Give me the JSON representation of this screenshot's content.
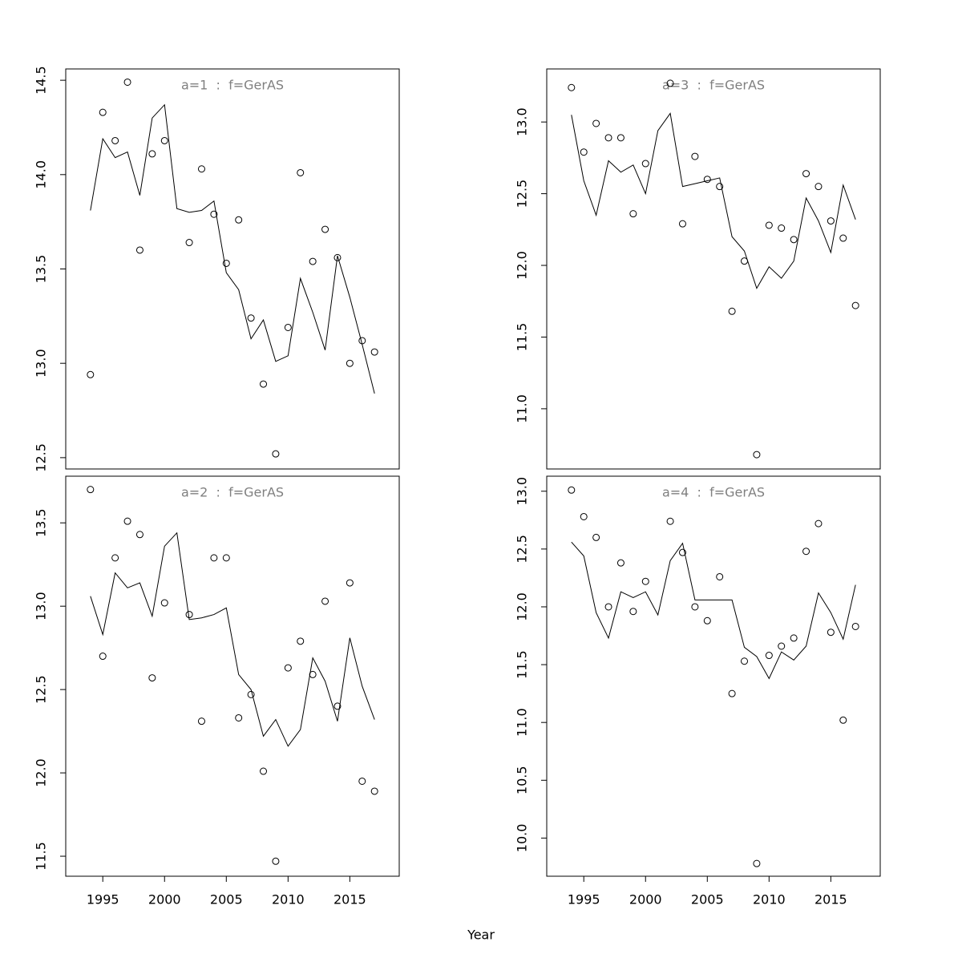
{
  "xlabel": "Year",
  "chart_data": [
    {
      "type": "scatter-line",
      "title": "a=1  :  f=GerAS",
      "x": [
        1994,
        1995,
        1996,
        1997,
        1998,
        1999,
        2000,
        2001,
        2002,
        2003,
        2004,
        2005,
        2006,
        2007,
        2008,
        2009,
        2010,
        2011,
        2012,
        2013,
        2014,
        2015,
        2016,
        2017
      ],
      "series": [
        {
          "style": "points",
          "color": "#000000",
          "values": [
            12.94,
            14.33,
            14.18,
            14.49,
            13.6,
            14.11,
            14.18,
            null,
            13.64,
            14.03,
            13.79,
            13.53,
            13.76,
            13.24,
            12.89,
            12.52,
            13.19,
            14.01,
            13.54,
            13.71,
            13.56,
            13.0,
            13.12,
            13.06
          ]
        },
        {
          "style": "line",
          "color": "#000000",
          "values": [
            13.81,
            14.19,
            14.09,
            14.12,
            13.89,
            14.3,
            14.37,
            13.82,
            13.8,
            13.81,
            13.86,
            13.48,
            13.39,
            13.13,
            13.23,
            13.01,
            13.04,
            13.45,
            13.27,
            13.07,
            13.57,
            13.35,
            13.1,
            12.84
          ]
        }
      ],
      "xlim": [
        1992,
        2019
      ],
      "ylim": [
        12.44,
        14.56
      ],
      "yticks": [
        {
          "value": 12.5,
          "label": "12.5"
        },
        {
          "value": 13,
          "label": "13.0"
        },
        {
          "value": 13.5,
          "label": "13.5"
        },
        {
          "value": 14,
          "label": "14.0"
        },
        {
          "value": 14.5,
          "label": "14.5"
        }
      ]
    },
    {
      "type": "scatter-line",
      "title": "a=2  :  f=GerAS",
      "x": [
        1994,
        1995,
        1996,
        1997,
        1998,
        1999,
        2000,
        2001,
        2002,
        2003,
        2004,
        2005,
        2006,
        2007,
        2008,
        2009,
        2010,
        2011,
        2012,
        2013,
        2014,
        2015,
        2016,
        2017
      ],
      "series": [
        {
          "style": "points",
          "color": "#000000",
          "values": [
            13.7,
            12.7,
            13.29,
            13.51,
            13.43,
            12.57,
            13.02,
            null,
            12.95,
            12.31,
            13.29,
            13.29,
            12.33,
            12.47,
            12.01,
            11.47,
            12.63,
            12.79,
            12.59,
            13.03,
            12.4,
            13.14,
            11.95,
            11.89
          ]
        },
        {
          "style": "line",
          "color": "#000000",
          "values": [
            13.06,
            12.83,
            13.2,
            13.11,
            13.14,
            12.94,
            13.36,
            13.44,
            12.92,
            12.93,
            12.95,
            12.99,
            12.59,
            12.5,
            12.22,
            12.32,
            12.16,
            12.26,
            12.69,
            12.55,
            12.31,
            12.81,
            12.52,
            12.32
          ]
        }
      ],
      "xlim": [
        1992,
        2019
      ],
      "ylim": [
        11.38,
        13.78
      ],
      "xticks": [
        1995,
        2000,
        2005,
        2010,
        2015
      ],
      "yticks": [
        {
          "value": 11.5,
          "label": "11.5"
        },
        {
          "value": 12,
          "label": "12.0"
        },
        {
          "value": 12.5,
          "label": "12.5"
        },
        {
          "value": 13,
          "label": "13.0"
        },
        {
          "value": 13.5,
          "label": "13.5"
        }
      ]
    },
    {
      "type": "scatter-line",
      "title": "a=3  :  f=GerAS",
      "x": [
        1994,
        1995,
        1996,
        1997,
        1998,
        1999,
        2000,
        2001,
        2002,
        2003,
        2004,
        2005,
        2006,
        2007,
        2008,
        2009,
        2010,
        2011,
        2012,
        2013,
        2014,
        2015,
        2016,
        2017
      ],
      "series": [
        {
          "style": "points",
          "color": "#000000",
          "values": [
            13.24,
            12.79,
            12.99,
            12.89,
            12.89,
            12.36,
            12.71,
            null,
            13.27,
            12.29,
            12.76,
            12.6,
            12.55,
            11.68,
            12.03,
            10.68,
            12.28,
            12.26,
            12.18,
            12.64,
            12.55,
            12.31,
            12.19,
            11.72
          ]
        },
        {
          "style": "line",
          "color": "#000000",
          "values": [
            13.05,
            12.59,
            12.35,
            12.73,
            12.65,
            12.7,
            12.5,
            12.94,
            13.06,
            12.55,
            12.57,
            12.59,
            12.61,
            12.2,
            12.1,
            11.84,
            11.99,
            11.91,
            12.03,
            12.47,
            12.31,
            12.09,
            12.56,
            12.32
          ]
        }
      ],
      "xlim": [
        1992,
        2019
      ],
      "ylim": [
        10.58,
        13.37
      ],
      "yticks": [
        {
          "value": 11,
          "label": "11.0"
        },
        {
          "value": 11.5,
          "label": "11.5"
        },
        {
          "value": 12,
          "label": "12.0"
        },
        {
          "value": 12.5,
          "label": "12.5"
        },
        {
          "value": 13,
          "label": "13.0"
        }
      ]
    },
    {
      "type": "scatter-line",
      "title": "a=4  :  f=GerAS",
      "x": [
        1994,
        1995,
        1996,
        1997,
        1998,
        1999,
        2000,
        2001,
        2002,
        2003,
        2004,
        2005,
        2006,
        2007,
        2008,
        2009,
        2010,
        2011,
        2012,
        2013,
        2014,
        2015,
        2016,
        2017
      ],
      "series": [
        {
          "style": "points",
          "color": "#000000",
          "values": [
            13.01,
            12.78,
            12.6,
            12.0,
            12.38,
            11.96,
            12.22,
            null,
            12.74,
            12.47,
            12.0,
            11.88,
            12.26,
            11.25,
            11.53,
            9.78,
            11.58,
            11.66,
            11.73,
            12.48,
            12.72,
            11.78,
            11.02,
            11.83
          ]
        },
        {
          "style": "line",
          "color": "#000000",
          "values": [
            12.56,
            12.44,
            11.95,
            11.73,
            12.13,
            12.08,
            12.13,
            11.93,
            12.4,
            12.55,
            12.06,
            12.06,
            12.06,
            12.06,
            11.65,
            11.57,
            11.38,
            11.61,
            11.54,
            11.66,
            12.12,
            11.95,
            11.72,
            12.19
          ]
        }
      ],
      "xlim": [
        1992,
        2019
      ],
      "ylim": [
        9.67,
        13.13
      ],
      "xticks": [
        1995,
        2000,
        2005,
        2010,
        2015
      ],
      "yticks": [
        {
          "value": 10,
          "label": "10.0"
        },
        {
          "value": 10.5,
          "label": "10.5"
        },
        {
          "value": 11,
          "label": "11.0"
        },
        {
          "value": 11.5,
          "label": "11.5"
        },
        {
          "value": 12,
          "label": "12.0"
        },
        {
          "value": 12.5,
          "label": "12.5"
        },
        {
          "value": 13,
          "label": "13.0"
        }
      ]
    }
  ]
}
